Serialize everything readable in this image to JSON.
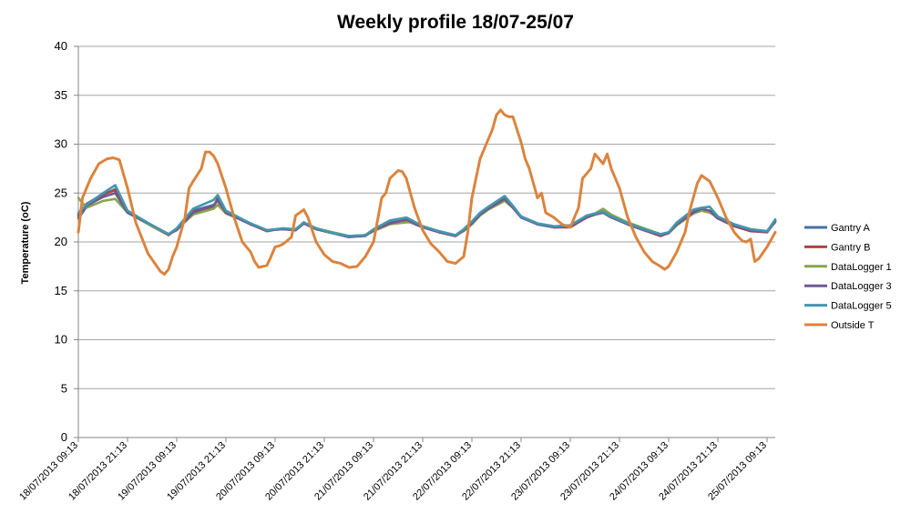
{
  "chart_data": {
    "type": "line",
    "title": "Weekly profile 18/07-25/07",
    "xlabel": "",
    "ylabel": "Temperature (oC)",
    "ylim": [
      0,
      40
    ],
    "yticks": [
      0,
      5,
      10,
      15,
      20,
      25,
      30,
      35,
      40
    ],
    "grid": true,
    "legend_position": "right",
    "x_unit": "hours since 18/07/2013 09:13",
    "xlim": [
      0,
      170
    ],
    "xtick_labels": [
      "18/07/2013 09:13",
      "18/07/2013 21:13",
      "19/07/2013 09:13",
      "19/07/2013 21:13",
      "20/07/2013 09:13",
      "20/07/2013 21:13",
      "21/07/2013 09:13",
      "21/07/2013 21:13",
      "22/07/2013 09:13",
      "22/07/2013 21:13",
      "23/07/2013 09:13",
      "23/07/2013 21:13",
      "24/07/2013 09:13",
      "24/07/2013 21:13",
      "25/07/2013 09:13"
    ],
    "xtick_hours": [
      0,
      12,
      24,
      36,
      48,
      60,
      72,
      84,
      96,
      108,
      120,
      132,
      144,
      156,
      168
    ],
    "series": [
      {
        "name": "Gantry A",
        "color": "#4572a7",
        "x": [
          0,
          2,
          6,
          9,
          12,
          18,
          22,
          24,
          28,
          33,
          34,
          36,
          42,
          46,
          50,
          53,
          55,
          58,
          62,
          66,
          70,
          72,
          76,
          80,
          81,
          84,
          88,
          92,
          94,
          96,
          98,
          100,
          104,
          106,
          108,
          112,
          116,
          120,
          124,
          126,
          128,
          130,
          134,
          138,
          142,
          144,
          146,
          150,
          152,
          154,
          156,
          160,
          164,
          168,
          170
        ],
        "values": [
          22.4,
          23.6,
          24.8,
          25.4,
          23.0,
          21.6,
          20.8,
          21.3,
          23.2,
          23.8,
          24.2,
          23.0,
          21.8,
          21.2,
          21.3,
          21.2,
          21.9,
          21.3,
          20.9,
          20.5,
          20.7,
          21.2,
          22.0,
          22.2,
          22.0,
          21.5,
          21.0,
          20.6,
          21.2,
          22.0,
          22.8,
          23.5,
          24.5,
          23.6,
          22.6,
          21.8,
          21.5,
          21.6,
          22.6,
          22.8,
          23.1,
          22.6,
          21.8,
          21.2,
          20.7,
          20.9,
          21.8,
          23.0,
          23.3,
          23.2,
          22.5,
          21.7,
          21.2,
          21.0,
          22.2
        ]
      },
      {
        "name": "Gantry B",
        "color": "#aa4643",
        "x": [
          0,
          2,
          6,
          9,
          12,
          18,
          22,
          24,
          28,
          33,
          34,
          36,
          42,
          46,
          50,
          53,
          55,
          58,
          62,
          66,
          70,
          72,
          76,
          80,
          81,
          84,
          88,
          92,
          94,
          96,
          98,
          100,
          104,
          106,
          108,
          112,
          116,
          120,
          124,
          126,
          128,
          130,
          134,
          138,
          142,
          144,
          146,
          150,
          152,
          154,
          156,
          160,
          164,
          168,
          170
        ],
        "values": [
          22.6,
          23.9,
          24.9,
          25.3,
          23.1,
          21.6,
          20.7,
          21.3,
          23.1,
          23.6,
          24.5,
          23.1,
          21.8,
          21.1,
          21.4,
          21.2,
          22.0,
          21.4,
          20.9,
          20.6,
          20.7,
          21.1,
          21.9,
          22.1,
          22.1,
          21.6,
          21.0,
          20.6,
          21.2,
          21.9,
          22.9,
          23.4,
          24.4,
          23.5,
          22.5,
          21.8,
          21.5,
          21.5,
          22.5,
          22.8,
          23.0,
          22.5,
          21.8,
          21.2,
          20.6,
          20.9,
          21.9,
          23.1,
          23.2,
          23.1,
          22.4,
          21.6,
          21.1,
          21.0,
          22.1
        ]
      },
      {
        "name": "DataLogger 1",
        "color": "#89a54e",
        "x": [
          0,
          2,
          6,
          9,
          12,
          18,
          22,
          24,
          28,
          33,
          34,
          36,
          42,
          46,
          50,
          53,
          55,
          58,
          62,
          66,
          70,
          72,
          76,
          80,
          81,
          84,
          88,
          92,
          94,
          96,
          98,
          100,
          104,
          106,
          108,
          112,
          116,
          120,
          124,
          126,
          128,
          130,
          134,
          138,
          142,
          144,
          146,
          150,
          152,
          154,
          156,
          160,
          164,
          168,
          170
        ],
        "values": [
          24.5,
          23.5,
          24.2,
          24.4,
          23.0,
          21.6,
          20.8,
          21.3,
          22.8,
          23.4,
          23.8,
          22.9,
          21.9,
          21.2,
          21.3,
          21.3,
          21.9,
          21.4,
          21.0,
          20.6,
          20.7,
          21.1,
          21.8,
          22.0,
          22.0,
          21.6,
          21.1,
          20.7,
          21.1,
          21.8,
          22.7,
          23.3,
          24.2,
          23.5,
          22.6,
          21.9,
          21.6,
          21.6,
          22.7,
          22.9,
          23.4,
          22.8,
          22.0,
          21.4,
          20.8,
          20.9,
          21.7,
          22.9,
          23.2,
          23.0,
          22.5,
          21.8,
          21.3,
          21.1,
          22.0
        ]
      },
      {
        "name": "DataLogger 3",
        "color": "#71588f",
        "x": [
          0,
          2,
          6,
          9,
          12,
          18,
          22,
          24,
          28,
          33,
          34,
          36,
          42,
          46,
          50,
          53,
          55,
          58,
          62,
          66,
          70,
          72,
          76,
          80,
          81,
          84,
          88,
          92,
          94,
          96,
          98,
          100,
          104,
          106,
          108,
          112,
          116,
          120,
          124,
          126,
          128,
          130,
          134,
          138,
          142,
          144,
          146,
          150,
          152,
          154,
          156,
          160,
          164,
          168,
          170
        ],
        "values": [
          22.8,
          23.7,
          24.6,
          25.0,
          23.0,
          21.7,
          20.8,
          21.2,
          23.0,
          23.7,
          24.3,
          23.0,
          21.8,
          21.2,
          21.3,
          21.2,
          21.9,
          21.3,
          20.9,
          20.5,
          20.6,
          21.2,
          21.9,
          22.3,
          22.1,
          21.5,
          21.0,
          20.6,
          21.2,
          21.9,
          22.8,
          23.4,
          24.4,
          23.5,
          22.5,
          21.8,
          21.5,
          21.6,
          22.5,
          22.8,
          23.0,
          22.5,
          21.8,
          21.2,
          20.7,
          20.9,
          21.8,
          23.0,
          23.4,
          23.2,
          22.4,
          21.7,
          21.2,
          21.0,
          22.1
        ]
      },
      {
        "name": "DataLogger 5",
        "color": "#4198af",
        "x": [
          0,
          2,
          6,
          9,
          12,
          18,
          22,
          24,
          28,
          33,
          34,
          36,
          42,
          46,
          50,
          53,
          55,
          58,
          62,
          66,
          70,
          72,
          76,
          80,
          81,
          84,
          88,
          92,
          94,
          96,
          98,
          100,
          104,
          106,
          108,
          112,
          116,
          120,
          124,
          126,
          128,
          130,
          134,
          138,
          142,
          144,
          146,
          150,
          152,
          154,
          156,
          160,
          164,
          168,
          170
        ],
        "values": [
          23.0,
          23.8,
          25.0,
          25.8,
          23.2,
          21.7,
          20.8,
          21.4,
          23.4,
          24.3,
          24.8,
          23.2,
          21.9,
          21.2,
          21.4,
          21.3,
          22.0,
          21.4,
          20.9,
          20.6,
          20.7,
          21.3,
          22.2,
          22.5,
          22.3,
          21.6,
          21.1,
          20.7,
          21.3,
          22.1,
          23.0,
          23.6,
          24.7,
          23.7,
          22.6,
          21.9,
          21.6,
          21.7,
          22.7,
          22.9,
          23.1,
          22.6,
          21.9,
          21.3,
          20.8,
          21.0,
          22.0,
          23.3,
          23.5,
          23.6,
          22.6,
          21.8,
          21.3,
          21.1,
          22.3
        ]
      },
      {
        "name": "Outside T",
        "color": "#db843d",
        "x": [
          0,
          1,
          3,
          5,
          7,
          8.5,
          10,
          12,
          14,
          17,
          20,
          21,
          22,
          23,
          24,
          26,
          27,
          28,
          30,
          31,
          32,
          33,
          34,
          36,
          38,
          40,
          42,
          43,
          44,
          46,
          47,
          48,
          49,
          50,
          52,
          53,
          54,
          55,
          56,
          58,
          60,
          62,
          64,
          66,
          68,
          70,
          72,
          74,
          75,
          76,
          78,
          79,
          80,
          82,
          84,
          86,
          88,
          90,
          92,
          94,
          95,
          96,
          98,
          100,
          101,
          102,
          103,
          104,
          105,
          106,
          107,
          108,
          109,
          110,
          111,
          112,
          113,
          114,
          116,
          118,
          120,
          122,
          123,
          124,
          125,
          126,
          127,
          128,
          129,
          130,
          131,
          132,
          134,
          136,
          138,
          140,
          142,
          143,
          144,
          146,
          148,
          149,
          150,
          151,
          152,
          153,
          154,
          156,
          158,
          160,
          161,
          162,
          163,
          164,
          165,
          166,
          168,
          170
        ],
        "values": [
          21.0,
          24.5,
          26.5,
          28.0,
          28.5,
          28.6,
          28.4,
          25.5,
          22.0,
          18.8,
          17.0,
          16.7,
          17.2,
          18.5,
          19.5,
          22.5,
          25.5,
          26.2,
          27.5,
          29.2,
          29.2,
          28.8,
          28.0,
          25.5,
          22.5,
          20.0,
          19.0,
          18.0,
          17.4,
          17.6,
          18.5,
          19.5,
          19.6,
          19.8,
          20.5,
          22.7,
          23.0,
          23.3,
          22.5,
          20.0,
          18.7,
          18.0,
          17.8,
          17.4,
          17.5,
          18.5,
          20.0,
          24.5,
          25.0,
          26.5,
          27.3,
          27.2,
          26.5,
          23.5,
          21.2,
          19.8,
          19.0,
          18.0,
          17.8,
          18.5,
          21.0,
          24.5,
          28.5,
          30.5,
          31.5,
          33.0,
          33.5,
          33.0,
          32.8,
          32.8,
          31.5,
          30.2,
          28.5,
          27.5,
          26.0,
          24.5,
          25.0,
          23.0,
          22.5,
          21.8,
          21.5,
          23.5,
          26.5,
          27.0,
          27.5,
          29.0,
          28.5,
          28.0,
          29.0,
          27.5,
          26.5,
          25.5,
          22.5,
          20.5,
          19.0,
          18.0,
          17.5,
          17.2,
          17.5,
          19.0,
          21.0,
          23.0,
          24.5,
          26.0,
          26.8,
          26.5,
          26.2,
          24.5,
          22.5,
          21.0,
          20.5,
          20.1,
          20.0,
          20.3,
          18.0,
          18.3,
          19.5,
          21.0
        ]
      }
    ]
  }
}
